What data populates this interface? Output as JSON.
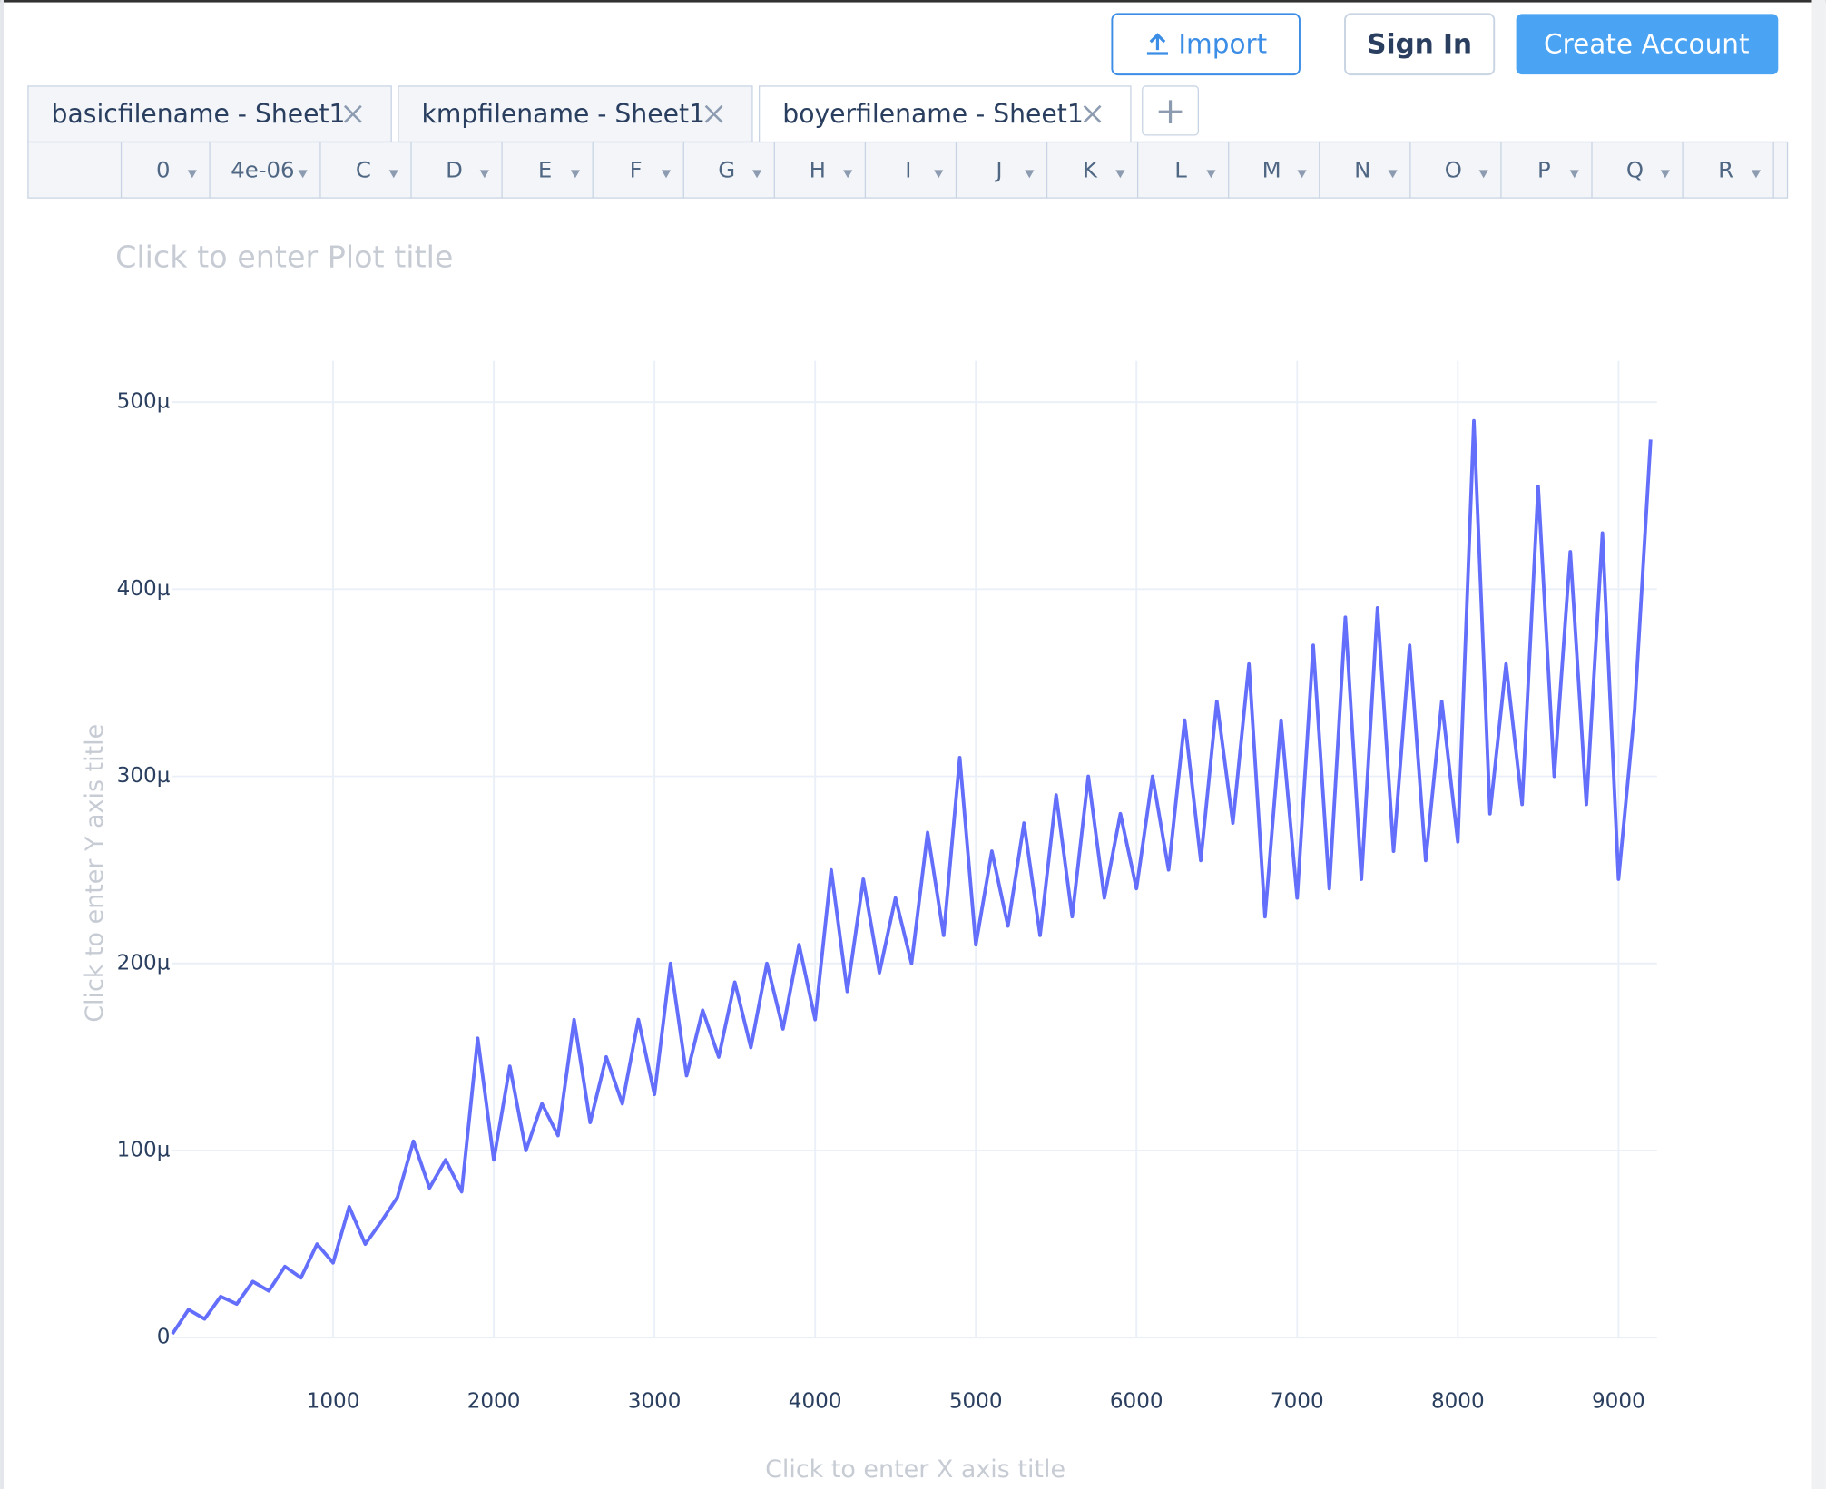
{
  "header": {
    "buttons": [
      "Import",
      "Sign In",
      "Create Account"
    ]
  },
  "tabs": [
    "basicfilename - Sheet1",
    "kmpfilename - Sheet1",
    "boyerfilename - Sheet1"
  ],
  "columns": [
    "0",
    "4e-06",
    "C",
    "D",
    "E",
    "F",
    "G",
    "H",
    "I",
    "J",
    "K",
    "L",
    "M",
    "N",
    "O",
    "P",
    "Q",
    "R"
  ],
  "chart_data": {
    "type": "line",
    "title": "Click to enter Plot title",
    "x_label": "Click to enter X axis title",
    "y_label": "Click to enter Y axis title",
    "color": "#636efa",
    "grid": true,
    "x": [
      0,
      100,
      200,
      300,
      400,
      500,
      600,
      700,
      800,
      900,
      1000,
      1100,
      1200,
      1300,
      1400,
      1500,
      1600,
      1700,
      1800,
      1900,
      2000,
      2100,
      2200,
      2300,
      2400,
      2500,
      2600,
      2700,
      2800,
      2900,
      3000,
      3100,
      3200,
      3300,
      3400,
      3500,
      3600,
      3700,
      3800,
      3900,
      4000,
      4100,
      4200,
      4300,
      4400,
      4500,
      4600,
      4700,
      4800,
      4900,
      5000,
      5100,
      5200,
      5300,
      5400,
      5500,
      5600,
      5700,
      5800,
      5900,
      6000,
      6100,
      6200,
      6300,
      6400,
      6500,
      6600,
      6700,
      6800,
      6900,
      7000,
      7100,
      7200,
      7300,
      7400,
      7500,
      7600,
      7700,
      7800,
      7900,
      8000,
      8100,
      8200,
      8300,
      8400,
      8500,
      8600,
      8700,
      8800,
      8900,
      9000,
      9100,
      9200
    ],
    "values": [
      2e-06,
      1.5e-05,
      1e-05,
      2.2e-05,
      1.8e-05,
      3e-05,
      2.5e-05,
      3.8e-05,
      3.2e-05,
      5e-05,
      4e-05,
      7e-05,
      5e-05,
      6.2e-05,
      7.5e-05,
      0.000105,
      8e-05,
      9.5e-05,
      7.8e-05,
      0.00016,
      9.5e-05,
      0.000145,
      0.0001,
      0.000125,
      0.000108,
      0.00017,
      0.000115,
      0.00015,
      0.000125,
      0.00017,
      0.00013,
      0.0002,
      0.00014,
      0.000175,
      0.00015,
      0.00019,
      0.000155,
      0.0002,
      0.000165,
      0.00021,
      0.00017,
      0.00025,
      0.000185,
      0.000245,
      0.000195,
      0.000235,
      0.0002,
      0.00027,
      0.000215,
      0.00031,
      0.00021,
      0.00026,
      0.00022,
      0.000275,
      0.000215,
      0.00029,
      0.000225,
      0.0003,
      0.000235,
      0.00028,
      0.00024,
      0.0003,
      0.00025,
      0.00033,
      0.000255,
      0.00034,
      0.000275,
      0.00036,
      0.000225,
      0.00033,
      0.000235,
      0.00037,
      0.00024,
      0.000385,
      0.000245,
      0.00039,
      0.00026,
      0.00037,
      0.000255,
      0.00034,
      0.000265,
      0.00049,
      0.00028,
      0.00036,
      0.000285,
      0.000455,
      0.0003,
      0.00042,
      0.000285,
      0.00043,
      0.000245,
      0.000335,
      0.00048
    ],
    "xlim": [
      0,
      9240
    ],
    "xticks": [
      1000,
      2000,
      3000,
      4000,
      5000,
      6000,
      7000,
      8000,
      9000
    ],
    "ylim": [
      0,
      0.000522
    ],
    "yticks": [
      0,
      {
        "value": 0.0001,
        "label": "100µ"
      },
      {
        "value": 0.0002,
        "label": "200µ"
      },
      {
        "value": 0.0003,
        "label": "300µ"
      },
      {
        "value": 0.0004,
        "label": "400µ"
      },
      {
        "value": 0.0005,
        "label": "500µ"
      }
    ]
  }
}
